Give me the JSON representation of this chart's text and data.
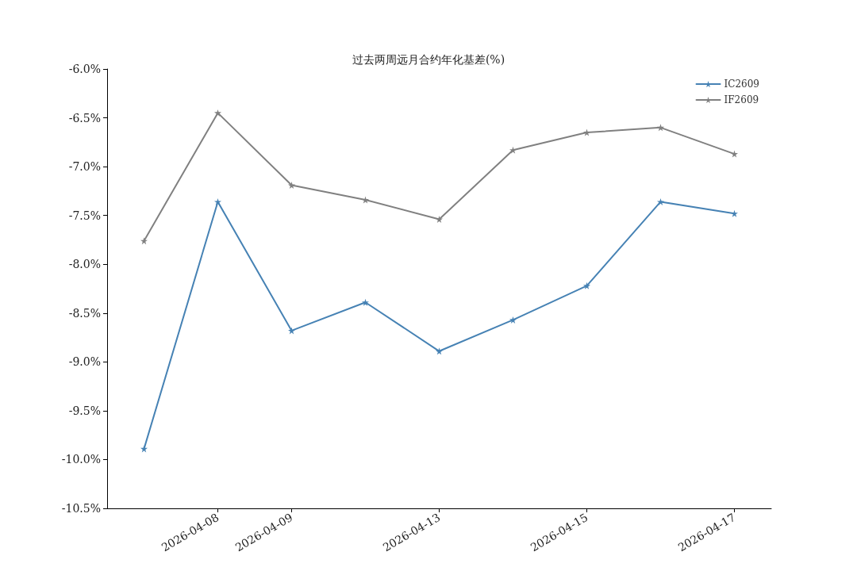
{
  "chart_data": {
    "type": "line",
    "title": "过去两周远月合约年化基差(%)",
    "categories": [
      null,
      "2026-04-08",
      "2026-04-09",
      null,
      "2026-04-13",
      null,
      "2026-04-15",
      null,
      "2026-04-17"
    ],
    "series": [
      {
        "name": "IC2609",
        "color": "#4682b4",
        "values": [
          -9.89,
          -7.36,
          -8.68,
          -8.39,
          -8.89,
          -8.57,
          -8.22,
          -7.36,
          -7.48
        ]
      },
      {
        "name": "IF2609",
        "color": "#808080",
        "values": [
          -7.76,
          -6.45,
          -7.19,
          -7.34,
          -7.54,
          -6.83,
          -6.65,
          -6.6,
          -6.87
        ]
      }
    ],
    "ylim": [
      -10.5,
      -6.0
    ],
    "yticks": [
      {
        "value": -10.5,
        "label": "-10.5%"
      },
      {
        "value": -10.0,
        "label": "-10.0%"
      },
      {
        "value": -9.5,
        "label": "-9.5%"
      },
      {
        "value": -9.0,
        "label": "-9.0%"
      },
      {
        "value": -8.5,
        "label": "-8.5%"
      },
      {
        "value": -8.0,
        "label": "-8.0%"
      },
      {
        "value": -7.5,
        "label": "-7.5%"
      },
      {
        "value": -7.0,
        "label": "-7.0%"
      },
      {
        "value": -6.5,
        "label": "-6.5%"
      },
      {
        "value": -6.0,
        "label": "-6.0%"
      }
    ],
    "grid": false,
    "legend": "top right",
    "marker": "star",
    "line_style": "solid"
  }
}
